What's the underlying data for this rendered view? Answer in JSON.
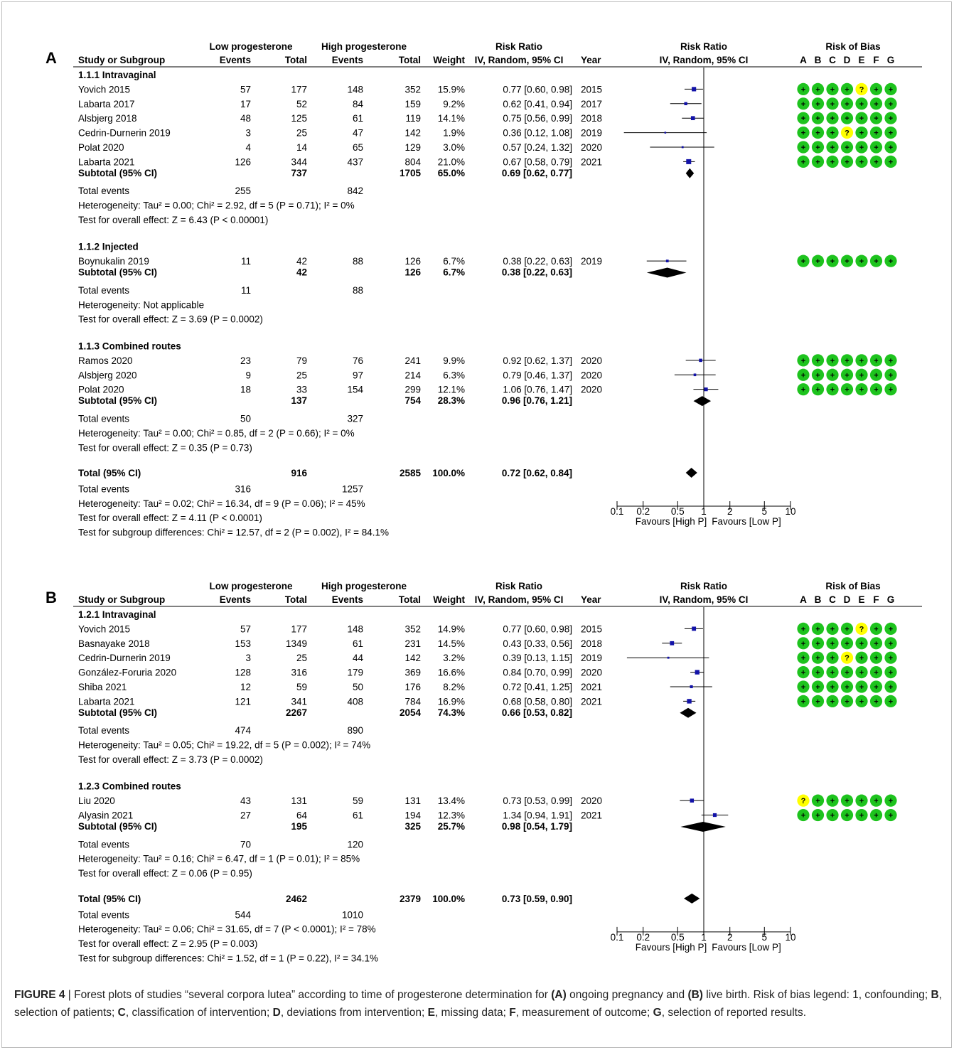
{
  "figure": {
    "header": {
      "low_group": "Low progesterone",
      "high_group": "High progesterone",
      "col_study": "Study or Subgroup",
      "col_events": "Events",
      "col_total": "Total",
      "col_weight": "Weight",
      "col_rr": "Risk Ratio",
      "col_rr_method": "IV, Random, 95% CI",
      "col_year": "Year",
      "col_rob": "Risk of Bias",
      "rob_domains": [
        "A",
        "B",
        "C",
        "D",
        "E",
        "F",
        "G"
      ]
    },
    "axis": {
      "scale": "log",
      "ticks": [
        {
          "v": 0.1,
          "label": "0.1"
        },
        {
          "v": 0.2,
          "label": "0.2"
        },
        {
          "v": 0.5,
          "label": "0.5"
        },
        {
          "v": 1,
          "label": "1"
        },
        {
          "v": 2,
          "label": "2"
        },
        {
          "v": 5,
          "label": "5"
        },
        {
          "v": 10,
          "label": "10"
        }
      ],
      "favours_left": "Favours [High P]",
      "favours_right": "Favours [Low P]"
    }
  },
  "chart_data": [
    {
      "type": "forest",
      "panel": "A",
      "subgroups": [
        {
          "name": "1.1.1 Intravaginal",
          "studies": [
            {
              "study": "Yovich 2015",
              "low_events": "57",
              "low_total": "177",
              "high_events": "148",
              "high_total": "352",
              "weight": "15.9%",
              "rr_text": "0.77 [0.60, 0.98]",
              "year": "2015",
              "rr": 0.77,
              "lo": 0.6,
              "hi": 0.98,
              "rob": [
                "+",
                "+",
                "+",
                "+",
                "?",
                "+",
                "+"
              ]
            },
            {
              "study": "Labarta 2017",
              "low_events": "17",
              "low_total": "52",
              "high_events": "84",
              "high_total": "159",
              "weight": "9.2%",
              "rr_text": "0.62 [0.41, 0.94]",
              "year": "2017",
              "rr": 0.62,
              "lo": 0.41,
              "hi": 0.94,
              "rob": [
                "+",
                "+",
                "+",
                "+",
                "+",
                "+",
                "+"
              ]
            },
            {
              "study": "Alsbjerg 2018",
              "low_events": "48",
              "low_total": "125",
              "high_events": "61",
              "high_total": "119",
              "weight": "14.1%",
              "rr_text": "0.75 [0.56, 0.99]",
              "year": "2018",
              "rr": 0.75,
              "lo": 0.56,
              "hi": 0.99,
              "rob": [
                "+",
                "+",
                "+",
                "+",
                "+",
                "+",
                "+"
              ]
            },
            {
              "study": "Cedrin-Durnerin 2019",
              "low_events": "3",
              "low_total": "25",
              "high_events": "47",
              "high_total": "142",
              "weight": "1.9%",
              "rr_text": "0.36 [0.12, 1.08]",
              "year": "2019",
              "rr": 0.36,
              "lo": 0.12,
              "hi": 1.08,
              "rob": [
                "+",
                "+",
                "+",
                "?",
                "+",
                "+",
                "+"
              ]
            },
            {
              "study": "Polat 2020",
              "low_events": "4",
              "low_total": "14",
              "high_events": "65",
              "high_total": "129",
              "weight": "3.0%",
              "rr_text": "0.57 [0.24, 1.32]",
              "year": "2020",
              "rr": 0.57,
              "lo": 0.24,
              "hi": 1.32,
              "rob": [
                "+",
                "+",
                "+",
                "+",
                "+",
                "+",
                "+"
              ]
            },
            {
              "study": "Labarta 2021",
              "low_events": "126",
              "low_total": "344",
              "high_events": "437",
              "high_total": "804",
              "weight": "21.0%",
              "rr_text": "0.67 [0.58, 0.79]",
              "year": "2021",
              "rr": 0.67,
              "lo": 0.58,
              "hi": 0.79,
              "rob": [
                "+",
                "+",
                "+",
                "+",
                "+",
                "+",
                "+"
              ]
            }
          ],
          "subtotal": {
            "label": "Subtotal (95% CI)",
            "low_total": "737",
            "high_total": "1705",
            "weight": "65.0%",
            "rr_text": "0.69 [0.62, 0.77]",
            "rr": 0.69,
            "lo": 0.62,
            "hi": 0.77
          },
          "total_events": {
            "label": "Total events",
            "low": "255",
            "high": "842"
          },
          "heterogeneity": "Heterogeneity: Tau² = 0.00; Chi² = 2.92, df = 5 (P = 0.71); I² = 0%",
          "overall_effect": "Test for overall effect: Z = 6.43 (P < 0.00001)"
        },
        {
          "name": "1.1.2 Injected",
          "studies": [
            {
              "study": "Boynukalin 2019",
              "low_events": "11",
              "low_total": "42",
              "high_events": "88",
              "high_total": "126",
              "weight": "6.7%",
              "rr_text": "0.38 [0.22, 0.63]",
              "year": "2019",
              "rr": 0.38,
              "lo": 0.22,
              "hi": 0.63,
              "rob": [
                "+",
                "+",
                "+",
                "+",
                "+",
                "+",
                "+"
              ]
            }
          ],
          "subtotal": {
            "label": "Subtotal (95% CI)",
            "low_total": "42",
            "high_total": "126",
            "weight": "6.7%",
            "rr_text": "0.38 [0.22, 0.63]",
            "rr": 0.38,
            "lo": 0.22,
            "hi": 0.63
          },
          "total_events": {
            "label": "Total events",
            "low": "11",
            "high": "88"
          },
          "heterogeneity": "Heterogeneity: Not applicable",
          "overall_effect": "Test for overall effect: Z = 3.69 (P = 0.0002)"
        },
        {
          "name": "1.1.3 Combined routes",
          "studies": [
            {
              "study": "Ramos 2020",
              "low_events": "23",
              "low_total": "79",
              "high_events": "76",
              "high_total": "241",
              "weight": "9.9%",
              "rr_text": "0.92 [0.62, 1.37]",
              "year": "2020",
              "rr": 0.92,
              "lo": 0.62,
              "hi": 1.37,
              "rob": [
                "+",
                "+",
                "+",
                "+",
                "+",
                "+",
                "+"
              ]
            },
            {
              "study": "Alsbjerg 2020",
              "low_events": "9",
              "low_total": "25",
              "high_events": "97",
              "high_total": "214",
              "weight": "6.3%",
              "rr_text": "0.79 [0.46, 1.37]",
              "year": "2020",
              "rr": 0.79,
              "lo": 0.46,
              "hi": 1.37,
              "rob": [
                "+",
                "+",
                "+",
                "+",
                "+",
                "+",
                "+"
              ]
            },
            {
              "study": "Polat 2020",
              "low_events": "18",
              "low_total": "33",
              "high_events": "154",
              "high_total": "299",
              "weight": "12.1%",
              "rr_text": "1.06 [0.76, 1.47]",
              "year": "2020",
              "rr": 1.06,
              "lo": 0.76,
              "hi": 1.47,
              "rob": [
                "+",
                "+",
                "+",
                "+",
                "+",
                "+",
                "+"
              ]
            }
          ],
          "subtotal": {
            "label": "Subtotal (95% CI)",
            "low_total": "137",
            "high_total": "754",
            "weight": "28.3%",
            "rr_text": "0.96 [0.76, 1.21]",
            "rr": 0.96,
            "lo": 0.76,
            "hi": 1.21
          },
          "total_events": {
            "label": "Total events",
            "low": "50",
            "high": "327"
          },
          "heterogeneity": "Heterogeneity: Tau² = 0.00; Chi² = 0.85, df = 2 (P = 0.66); I² = 0%",
          "overall_effect": "Test for overall effect: Z = 0.35 (P = 0.73)"
        }
      ],
      "total": {
        "label": "Total (95% CI)",
        "low_total": "916",
        "high_total": "2585",
        "weight": "100.0%",
        "rr_text": "0.72 [0.62, 0.84]",
        "rr": 0.72,
        "lo": 0.62,
        "hi": 0.84
      },
      "total_events": {
        "label": "Total events",
        "low": "316",
        "high": "1257"
      },
      "footer": [
        "Heterogeneity: Tau² = 0.02; Chi² = 16.34, df = 9 (P = 0.06); I² = 45%",
        "Test for overall effect: Z = 4.11 (P < 0.0001)",
        "Test for subgroup differences: Chi² = 12.57, df = 2 (P = 0.002), I² = 84.1%"
      ]
    },
    {
      "type": "forest",
      "panel": "B",
      "subgroups": [
        {
          "name": "1.2.1 Intravaginal",
          "studies": [
            {
              "study": "Yovich 2015",
              "low_events": "57",
              "low_total": "177",
              "high_events": "148",
              "high_total": "352",
              "weight": "14.9%",
              "rr_text": "0.77 [0.60, 0.98]",
              "year": "2015",
              "rr": 0.77,
              "lo": 0.6,
              "hi": 0.98,
              "rob": [
                "+",
                "+",
                "+",
                "+",
                "?",
                "+",
                "+"
              ]
            },
            {
              "study": "Basnayake 2018",
              "low_events": "153",
              "low_total": "1349",
              "high_events": "61",
              "high_total": "231",
              "weight": "14.5%",
              "rr_text": "0.43 [0.33, 0.56]",
              "year": "2018",
              "rr": 0.43,
              "lo": 0.33,
              "hi": 0.56,
              "rob": [
                "+",
                "+",
                "+",
                "+",
                "+",
                "+",
                "+"
              ]
            },
            {
              "study": "Cedrin-Durnerin 2019",
              "low_events": "3",
              "low_total": "25",
              "high_events": "44",
              "high_total": "142",
              "weight": "3.2%",
              "rr_text": "0.39 [0.13, 1.15]",
              "year": "2019",
              "rr": 0.39,
              "lo": 0.13,
              "hi": 1.15,
              "rob": [
                "+",
                "+",
                "+",
                "?",
                "+",
                "+",
                "+"
              ]
            },
            {
              "study": "González-Foruria 2020",
              "low_events": "128",
              "low_total": "316",
              "high_events": "179",
              "high_total": "369",
              "weight": "16.6%",
              "rr_text": "0.84 [0.70, 0.99]",
              "year": "2020",
              "rr": 0.84,
              "lo": 0.7,
              "hi": 0.99,
              "rob": [
                "+",
                "+",
                "+",
                "+",
                "+",
                "+",
                "+"
              ]
            },
            {
              "study": "Shiba 2021",
              "low_events": "12",
              "low_total": "59",
              "high_events": "50",
              "high_total": "176",
              "weight": "8.2%",
              "rr_text": "0.72 [0.41, 1.25]",
              "year": "2021",
              "rr": 0.72,
              "lo": 0.41,
              "hi": 1.25,
              "rob": [
                "+",
                "+",
                "+",
                "+",
                "+",
                "+",
                "+"
              ]
            },
            {
              "study": "Labarta 2021",
              "low_events": "121",
              "low_total": "341",
              "high_events": "408",
              "high_total": "784",
              "weight": "16.9%",
              "rr_text": "0.68 [0.58, 0.80]",
              "year": "2021",
              "rr": 0.68,
              "lo": 0.58,
              "hi": 0.8,
              "rob": [
                "+",
                "+",
                "+",
                "+",
                "+",
                "+",
                "+"
              ]
            }
          ],
          "subtotal": {
            "label": "Subtotal (95% CI)",
            "low_total": "2267",
            "high_total": "2054",
            "weight": "74.3%",
            "rr_text": "0.66 [0.53, 0.82]",
            "rr": 0.66,
            "lo": 0.53,
            "hi": 0.82
          },
          "total_events": {
            "label": "Total events",
            "low": "474",
            "high": "890"
          },
          "heterogeneity": "Heterogeneity: Tau² = 0.05; Chi² = 19.22, df = 5 (P = 0.002); I² = 74%",
          "overall_effect": "Test for overall effect: Z = 3.73 (P = 0.0002)"
        },
        {
          "name": "1.2.3 Combined routes",
          "studies": [
            {
              "study": "Liu 2020",
              "low_events": "43",
              "low_total": "131",
              "high_events": "59",
              "high_total": "131",
              "weight": "13.4%",
              "rr_text": "0.73 [0.53, 0.99]",
              "year": "2020",
              "rr": 0.73,
              "lo": 0.53,
              "hi": 0.99,
              "rob": [
                "?",
                "+",
                "+",
                "+",
                "+",
                "+",
                "+"
              ]
            },
            {
              "study": "Alyasin 2021",
              "low_events": "27",
              "low_total": "64",
              "high_events": "61",
              "high_total": "194",
              "weight": "12.3%",
              "rr_text": "1.34 [0.94, 1.91]",
              "year": "2021",
              "rr": 1.34,
              "lo": 0.94,
              "hi": 1.91,
              "rob": [
                "+",
                "+",
                "+",
                "+",
                "+",
                "+",
                "+"
              ]
            }
          ],
          "subtotal": {
            "label": "Subtotal (95% CI)",
            "low_total": "195",
            "high_total": "325",
            "weight": "25.7%",
            "rr_text": "0.98 [0.54, 1.79]",
            "rr": 0.98,
            "lo": 0.54,
            "hi": 1.79
          },
          "total_events": {
            "label": "Total events",
            "low": "70",
            "high": "120"
          },
          "heterogeneity": "Heterogeneity: Tau² = 0.16; Chi² = 6.47, df = 1 (P = 0.01); I² = 85%",
          "overall_effect": "Test for overall effect: Z = 0.06 (P = 0.95)"
        }
      ],
      "total": {
        "label": "Total (95% CI)",
        "low_total": "2462",
        "high_total": "2379",
        "weight": "100.0%",
        "rr_text": "0.73 [0.59, 0.90]",
        "rr": 0.73,
        "lo": 0.59,
        "hi": 0.9
      },
      "total_events": {
        "label": "Total events",
        "low": "544",
        "high": "1010"
      },
      "footer": [
        "Heterogeneity: Tau² = 0.06; Chi² = 31.65, df = 7 (P < 0.0001); I² = 78%",
        "Test for overall effect: Z = 2.95 (P = 0.003)",
        "Test for subgroup differences: Chi² = 1.52, df = 1 (P = 0.22), I² = 34.1%"
      ]
    }
  ],
  "colors": {
    "low_risk": "#1ec31e",
    "unclear_risk": "#ffff00",
    "point": "#1212a8",
    "diamond": "#000000"
  },
  "caption": {
    "label": "FIGURE 4",
    "sep": " | ",
    "t1": "Forest plots of studies “several corpora lutea” according to time of progesterone determination for ",
    "b1": "(A)",
    "t2": " ongoing pregnancy and ",
    "b2": "(B)",
    "t3": " live birth. Risk of bias legend: 1, confounding; ",
    "b3": "B",
    "t4": ", selection of patients; ",
    "b4": "C",
    "t5": ", classification of intervention; ",
    "b5": "D",
    "t6": ", deviations from intervention; ",
    "b6": "E",
    "t7": ", missing data; ",
    "b7": "F",
    "t8": ", measurement of outcome; ",
    "b8": "G",
    "t9": ", selection of reported results."
  }
}
